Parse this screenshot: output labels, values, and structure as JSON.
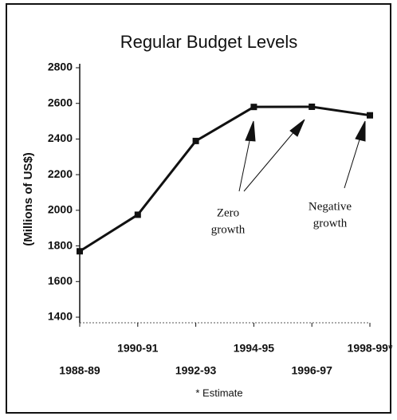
{
  "chart_data": {
    "type": "line",
    "title": "Regular Budget Levels",
    "y_label": "(Millions of US$)",
    "categories": [
      "1988-89",
      "1990-91",
      "1992-93",
      "1994-95",
      "1996-97",
      "1998-99*"
    ],
    "values": [
      1770,
      1975,
      2389,
      2580,
      2581,
      2533
    ],
    "color": "#111111",
    "ylim": [
      1400,
      2800
    ],
    "yticks": [
      1400,
      1600,
      1800,
      2000,
      2200,
      2400,
      2600,
      2800
    ],
    "annotations": [
      {
        "lines": [
          "Zero",
          "growth"
        ]
      },
      {
        "lines": [
          "Negative",
          "growth"
        ]
      }
    ],
    "footnote": "* Estimate"
  }
}
